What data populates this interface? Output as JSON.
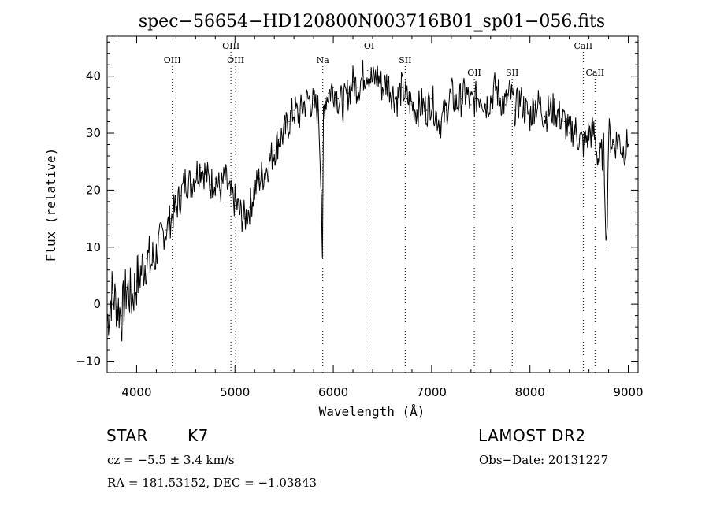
{
  "chart_data": {
    "type": "line",
    "title": "spec−56654−HD120800N003716B01_sp01−056.fits",
    "xlabel": "Wavelength (Å)",
    "ylabel": "Flux (relative)",
    "xlim": [
      3700,
      9100
    ],
    "ylim": [
      -12,
      47
    ],
    "x_ticks": [
      4000,
      5000,
      6000,
      7000,
      8000,
      9000
    ],
    "y_ticks": [
      -10,
      0,
      10,
      20,
      30,
      40
    ],
    "grid": false,
    "line_color": "#000000",
    "series": [
      {
        "x": [
          3700,
          3750,
          3800,
          3850,
          3900,
          3950,
          4000,
          4050,
          4100,
          4150,
          4200,
          4250,
          4300,
          4350,
          4400,
          4450,
          4500,
          4550,
          4600,
          4650,
          4700,
          4750,
          4800,
          4850,
          4900,
          4950,
          5000,
          5050,
          5100,
          5150,
          5200,
          5250,
          5300,
          5350,
          5400,
          5450,
          5500,
          5550,
          5600,
          5650,
          5700,
          5750,
          5800,
          5850,
          5880,
          5890,
          5900,
          5920,
          5950,
          6000,
          6050,
          6100,
          6150,
          6200,
          6250,
          6300,
          6350,
          6400,
          6450,
          6500,
          6550,
          6600,
          6650,
          6700,
          6750,
          6800,
          6850,
          6900,
          6950,
          7000,
          7050,
          7100,
          7150,
          7200,
          7250,
          7300,
          7350,
          7400,
          7450,
          7500,
          7550,
          7600,
          7650,
          7700,
          7750,
          7800,
          7850,
          7900,
          7950,
          8000,
          8050,
          8100,
          8150,
          8200,
          8250,
          8300,
          8350,
          8400,
          8450,
          8500,
          8550,
          8600,
          8650,
          8700,
          8750,
          8780,
          8800,
          8850,
          8900,
          8950,
          9000
        ],
        "values": [
          -3,
          2,
          0,
          -2,
          3,
          1,
          4,
          6,
          8,
          7,
          9,
          12,
          13,
          15,
          17,
          19,
          22,
          21,
          23,
          24,
          23,
          21,
          22,
          20,
          22,
          19,
          18,
          16,
          15,
          17,
          20,
          22,
          23,
          25,
          27,
          29,
          30,
          32,
          34,
          33,
          35,
          36,
          35,
          34,
          20,
          5,
          34,
          36,
          37,
          38,
          36,
          35,
          37,
          39,
          38,
          40,
          41,
          39,
          40,
          38,
          39,
          37,
          36,
          38,
          36,
          35,
          34,
          35,
          34,
          36,
          33,
          32,
          34,
          37,
          35,
          36,
          37,
          35,
          36,
          37,
          35,
          36,
          38,
          36,
          35,
          37,
          34,
          36,
          34,
          33,
          35,
          35,
          33,
          34,
          34,
          33,
          32,
          30,
          31,
          29,
          28,
          30,
          30,
          25,
          27,
          10,
          30,
          28,
          29,
          27,
          28
        ]
      }
    ],
    "line_labels": [
      {
        "name": "OIII",
        "wavelength": 4363,
        "row": "low"
      },
      {
        "name": "OIII",
        "wavelength": 4959,
        "row": "high"
      },
      {
        "name": "OIII",
        "wavelength": 5007,
        "row": "low"
      },
      {
        "name": "Na",
        "wavelength": 5893,
        "row": "low"
      },
      {
        "name": "OI",
        "wavelength": 6364,
        "row": "high"
      },
      {
        "name": "SII",
        "wavelength": 6731,
        "row": "low"
      },
      {
        "name": "OII",
        "wavelength": 7434,
        "row": "mid"
      },
      {
        "name": "SII",
        "wavelength": 7820,
        "row": "mid"
      },
      {
        "name": "CaII",
        "wavelength": 8542,
        "row": "high"
      },
      {
        "name": "CaII",
        "wavelength": 8662,
        "row": "mid"
      }
    ]
  },
  "info": {
    "object_class": "STAR",
    "subclass": "K7",
    "cz": "cz = −5.5 ± 3.4 km/s",
    "coords": "RA = 181.53152, DEC =  −1.03843",
    "survey": "LAMOST DR2",
    "obs_date": "Obs−Date: 20131227"
  }
}
